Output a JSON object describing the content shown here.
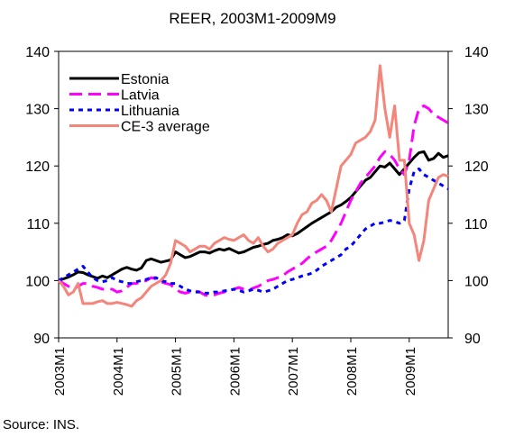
{
  "chart_data": {
    "type": "line",
    "title": "REER, 2003M1-2009M9",
    "source": "Source: INS.",
    "categories": [
      "2003M1",
      null,
      null,
      null,
      null,
      null,
      null,
      null,
      null,
      null,
      null,
      null,
      "2004M1",
      null,
      null,
      null,
      null,
      null,
      null,
      null,
      null,
      null,
      null,
      null,
      "2005M1",
      null,
      null,
      null,
      null,
      null,
      null,
      null,
      null,
      null,
      null,
      null,
      "2006M1",
      null,
      null,
      null,
      null,
      null,
      null,
      null,
      null,
      null,
      null,
      null,
      "2007M1",
      null,
      null,
      null,
      null,
      null,
      null,
      null,
      null,
      null,
      null,
      null,
      "2008M1",
      null,
      null,
      null,
      null,
      null,
      null,
      null,
      null,
      null,
      null,
      null,
      "2009M1",
      null,
      null,
      null,
      null,
      null,
      null,
      null,
      null
    ],
    "ylim": [
      90,
      140
    ],
    "yticks": [
      90,
      100,
      110,
      120,
      130,
      140
    ],
    "y2lim": [
      90,
      140
    ],
    "y2ticks": [
      90,
      100,
      110,
      120,
      130,
      140
    ],
    "legend": "upper left",
    "series": [
      {
        "name": "Estonia",
        "color": "#000000",
        "linestyle": "solid",
        "values": [
          100,
          100.3,
          100.6,
          101,
          101.5,
          101.4,
          101,
          100.7,
          100.4,
          100.8,
          100.5,
          101,
          101.5,
          102,
          102.3,
          102,
          101.8,
          102.2,
          103.5,
          103.8,
          103.5,
          103.2,
          103.4,
          103.6,
          105,
          104.5,
          104,
          104.2,
          104.6,
          105,
          105,
          104.8,
          105.2,
          105.5,
          105.3,
          105.6,
          105.2,
          104.8,
          105,
          105.4,
          105.8,
          106,
          106.3,
          106.5,
          107,
          107.2,
          107.5,
          108,
          107.8,
          108.2,
          108.8,
          109.4,
          110,
          110.5,
          111,
          111.5,
          112,
          112.8,
          113.2,
          113.8,
          114.5,
          115.5,
          116.5,
          117.5,
          118,
          119,
          120,
          119.8,
          120.5,
          119.5,
          118.5,
          119.5,
          120.5,
          121.5,
          122.3,
          122.5,
          121,
          121.3,
          122.2,
          121.5,
          121.8
        ]
      },
      {
        "name": "Latvia",
        "color": "#ff00ff",
        "linestyle": "dashed",
        "values": [
          100,
          99.5,
          99,
          98.5,
          99,
          99.5,
          99.5,
          99,
          98.8,
          98.5,
          98.5,
          98.5,
          98,
          98.2,
          98.8,
          99.5,
          99.5,
          99.8,
          100,
          100.5,
          100.3,
          99.8,
          99.5,
          99.3,
          98.5,
          98,
          97.8,
          98,
          98.2,
          98,
          97.5,
          97.3,
          97.5,
          97.8,
          98,
          98.2,
          98.5,
          98.8,
          98.5,
          98.3,
          98.7,
          99,
          99.5,
          100,
          100.2,
          100.5,
          100.8,
          101.5,
          102,
          102.5,
          103,
          103.8,
          104.5,
          105,
          105.5,
          106,
          107,
          108.5,
          110,
          112,
          114,
          115.5,
          117,
          118,
          119,
          120,
          121.5,
          122.5,
          122,
          121,
          119.5,
          118.5,
          121,
          127,
          130,
          130.5,
          130,
          129,
          128.5,
          128,
          127.5
        ]
      },
      {
        "name": "Lithuania",
        "color": "#0000ff",
        "linestyle": "dotted",
        "values": [
          100,
          100.5,
          101,
          101.5,
          102,
          102.5,
          101.5,
          100.5,
          100,
          99.8,
          100,
          100.5,
          100,
          99.8,
          99.5,
          99.5,
          99.8,
          100,
          100.2,
          100.5,
          100.5,
          100,
          99.8,
          99.5,
          99.5,
          99,
          98.5,
          98.2,
          98,
          98,
          97.8,
          97.8,
          98,
          98,
          98.2,
          98.3,
          98.5,
          98.3,
          98,
          98.2,
          98.5,
          98.3,
          98,
          98.2,
          98.5,
          99,
          99.5,
          100,
          100.2,
          100.5,
          100.8,
          101,
          101.3,
          101.8,
          102.5,
          103,
          103.5,
          104,
          104.5,
          105.5,
          106,
          107,
          108,
          109,
          109.5,
          110,
          110,
          110.2,
          110.5,
          110.3,
          110,
          110.5,
          116,
          119,
          119.5,
          118.5,
          118,
          117.5,
          117,
          116.5,
          116
        ]
      },
      {
        "name": "CE-3 average",
        "color": "#f4857a",
        "linestyle": "solid",
        "values": [
          100,
          99,
          97.5,
          98,
          99.5,
          96,
          96,
          96,
          96.3,
          96.5,
          96,
          96,
          96.2,
          96,
          95.8,
          95.5,
          96.5,
          97,
          98,
          99,
          99.5,
          100,
          101,
          103,
          107,
          106.5,
          106,
          105,
          105.5,
          106,
          106,
          105.5,
          106.5,
          107,
          107.5,
          107.2,
          107,
          107.5,
          108,
          107,
          106.5,
          107.5,
          106,
          105,
          105.5,
          106.5,
          107,
          107.5,
          108,
          110,
          111.5,
          112,
          113.5,
          114,
          115,
          114,
          112,
          116,
          120,
          121,
          122,
          124,
          124.5,
          125,
          126,
          128,
          137.5,
          130,
          125,
          130.5,
          121,
          121,
          110,
          108,
          103.5,
          107,
          114,
          116,
          118,
          118.5,
          118.2
        ]
      }
    ]
  }
}
